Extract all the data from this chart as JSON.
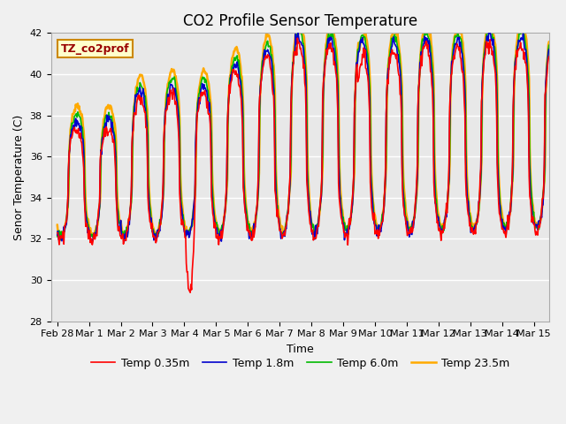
{
  "title": "CO2 Profile Sensor Temperature",
  "xlabel": "Time",
  "ylabel": "Senor Temperature (C)",
  "ylim": [
    28,
    42
  ],
  "xlim_start": -0.2,
  "xlim_end": 15.5,
  "annotation_text": "TZ_co2prof",
  "annotation_bg": "#ffffcc",
  "annotation_border": "#cc8800",
  "annotation_text_color": "#990000",
  "fig_bg": "#f0f0f0",
  "plot_bg": "#e8e8e8",
  "series_colors": [
    "#ff0000",
    "#0000cc",
    "#00bb00",
    "#ffaa00"
  ],
  "series_labels": [
    "Temp 0.35m",
    "Temp 1.8m",
    "Temp 6.0m",
    "Temp 23.5m"
  ],
  "series_linewidths": [
    1.2,
    1.2,
    1.2,
    1.8
  ],
  "xtick_labels": [
    "Feb 28",
    "Mar 1",
    "Mar 2",
    "Mar 3",
    "Mar 4",
    "Mar 5",
    "Mar 6",
    "Mar 7",
    "Mar 8",
    "Mar 9",
    "Mar 10",
    "Mar 11",
    "Mar 12",
    "Mar 13",
    "Mar 14",
    "Mar 15"
  ],
  "xtick_positions": [
    0,
    1,
    2,
    3,
    4,
    5,
    6,
    7,
    8,
    9,
    10,
    11,
    12,
    13,
    14,
    15
  ],
  "ytick_positions": [
    28,
    30,
    32,
    34,
    36,
    38,
    40,
    42
  ],
  "grid_color": "#ffffff",
  "title_fontsize": 12,
  "axis_fontsize": 9,
  "tick_fontsize": 8,
  "legend_fontsize": 9
}
